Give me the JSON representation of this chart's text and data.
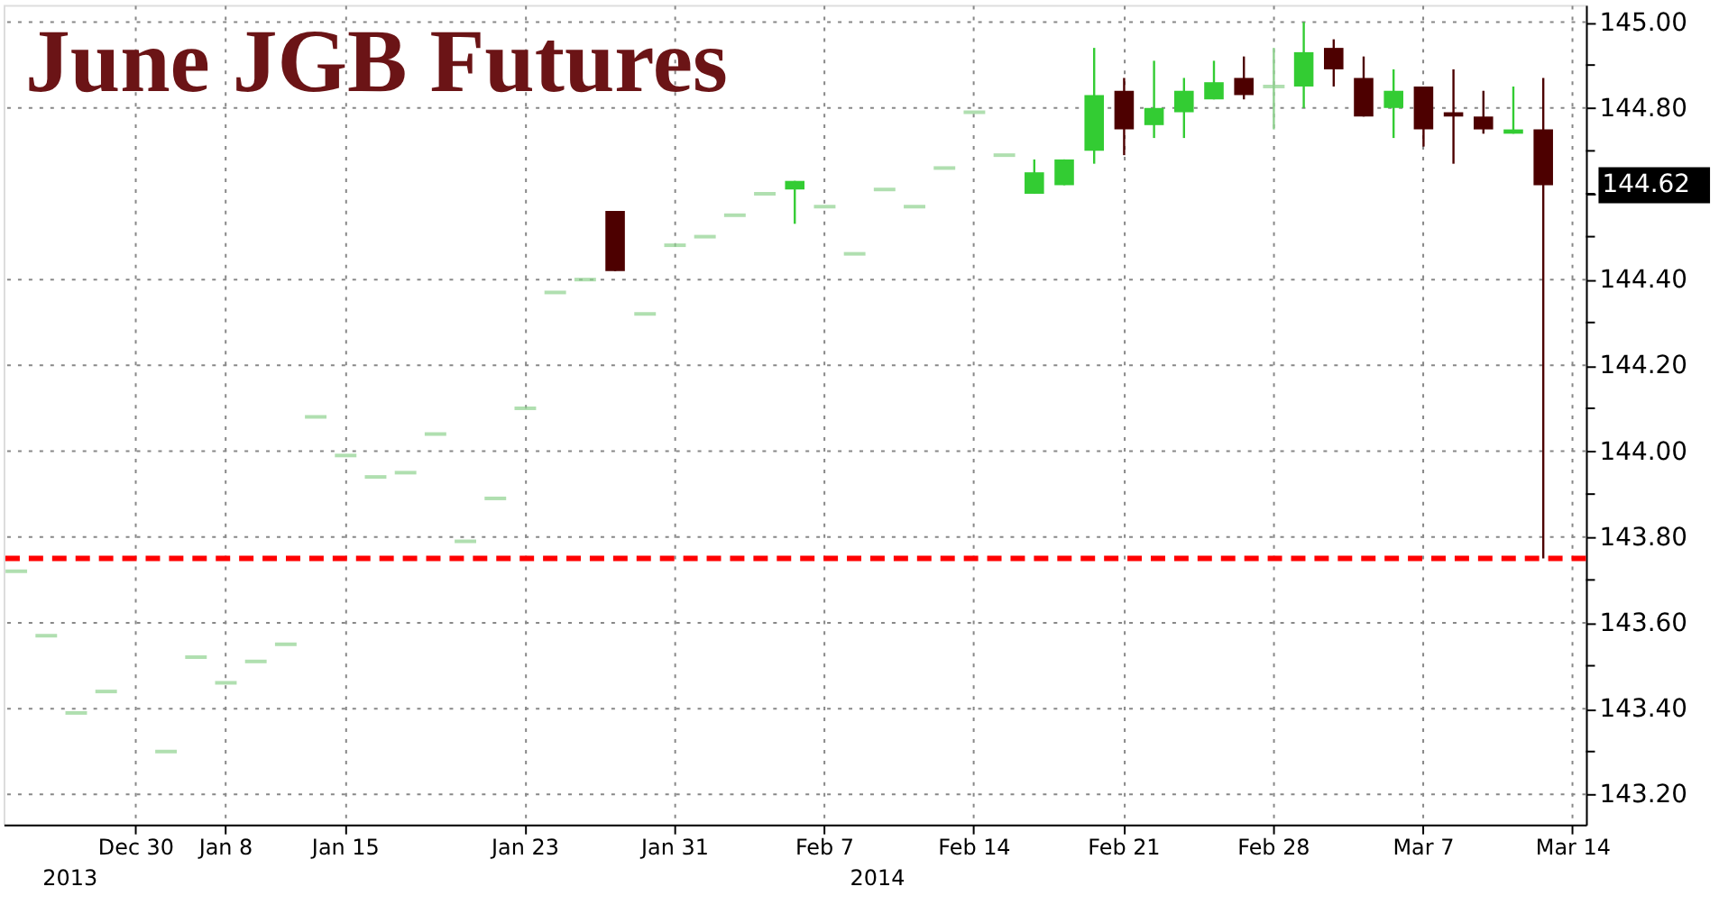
{
  "chart_data": {
    "type": "candlestick",
    "title": "June JGB Futures",
    "categories": [
      null,
      null,
      null,
      null,
      "Dec 30",
      null,
      null,
      "Jan 8",
      null,
      null,
      null,
      "Jan 15",
      null,
      null,
      null,
      null,
      null,
      "Jan 23",
      null,
      null,
      null,
      null,
      "Jan 31",
      null,
      null,
      null,
      null,
      "Feb 7",
      null,
      null,
      null,
      null,
      "Feb 14",
      null,
      null,
      null,
      null,
      "Feb 21",
      null,
      null,
      null,
      null,
      "Feb 28",
      null,
      null,
      null,
      null,
      "Mar 7",
      null,
      null,
      null,
      null,
      "Mar 14"
    ],
    "ohlc": [
      [
        143.72,
        143.72,
        143.72,
        143.72
      ],
      [
        143.57,
        143.57,
        143.57,
        143.57
      ],
      [
        143.39,
        143.39,
        143.39,
        143.39
      ],
      [
        143.44,
        143.44,
        143.44,
        143.44
      ],
      null,
      [
        143.3,
        143.3,
        143.3,
        143.3
      ],
      [
        143.52,
        143.52,
        143.52,
        143.52
      ],
      [
        143.46,
        143.46,
        143.46,
        143.46
      ],
      [
        143.51,
        143.51,
        143.51,
        143.51
      ],
      [
        143.55,
        143.55,
        143.55,
        143.55
      ],
      [
        144.08,
        144.08,
        144.08,
        144.08
      ],
      [
        143.99,
        143.99,
        143.99,
        143.99
      ],
      [
        143.94,
        143.94,
        143.94,
        143.94
      ],
      [
        143.95,
        143.95,
        143.95,
        143.95
      ],
      [
        144.04,
        144.04,
        144.04,
        144.04
      ],
      [
        143.79,
        143.79,
        143.79,
        143.79
      ],
      [
        143.89,
        143.89,
        143.89,
        143.89
      ],
      [
        144.1,
        144.1,
        144.1,
        144.1
      ],
      [
        144.37,
        144.37,
        144.37,
        144.37
      ],
      [
        144.4,
        144.4,
        144.4,
        144.4
      ],
      [
        144.56,
        144.56,
        144.42,
        144.42
      ],
      [
        144.32,
        144.32,
        144.32,
        144.32
      ],
      [
        144.48,
        144.48,
        144.48,
        144.48
      ],
      [
        144.5,
        144.5,
        144.5,
        144.5
      ],
      [
        144.55,
        144.55,
        144.55,
        144.55
      ],
      [
        144.6,
        144.6,
        144.6,
        144.6
      ],
      [
        144.61,
        144.63,
        144.53,
        144.63
      ],
      [
        144.57,
        144.57,
        144.57,
        144.57
      ],
      [
        144.46,
        144.46,
        144.46,
        144.46
      ],
      [
        144.61,
        144.61,
        144.61,
        144.61
      ],
      [
        144.57,
        144.57,
        144.57,
        144.57
      ],
      [
        144.66,
        144.66,
        144.66,
        144.66
      ],
      [
        144.79,
        144.79,
        144.79,
        144.79
      ],
      [
        144.69,
        144.69,
        144.69,
        144.69
      ],
      [
        144.6,
        144.68,
        144.6,
        144.65
      ],
      [
        144.62,
        144.68,
        144.62,
        144.68
      ],
      [
        144.7,
        144.94,
        144.67,
        144.83
      ],
      [
        144.84,
        144.87,
        144.69,
        144.75
      ],
      [
        144.76,
        144.91,
        144.73,
        144.8
      ],
      [
        144.79,
        144.87,
        144.73,
        144.84
      ],
      [
        144.82,
        144.91,
        144.82,
        144.86
      ],
      [
        144.87,
        144.92,
        144.82,
        144.83
      ],
      [
        144.85,
        144.94,
        144.75,
        144.85
      ],
      [
        144.85,
        145.0,
        144.8,
        144.93
      ],
      [
        144.94,
        144.96,
        144.85,
        144.89
      ],
      [
        144.87,
        144.92,
        144.78,
        144.78
      ],
      [
        144.8,
        144.89,
        144.73,
        144.84
      ],
      [
        144.85,
        144.85,
        144.71,
        144.75
      ],
      [
        144.79,
        144.89,
        144.67,
        144.78
      ],
      [
        144.78,
        144.84,
        144.74,
        144.75
      ],
      [
        144.74,
        144.85,
        144.74,
        144.75
      ],
      [
        144.75,
        144.87,
        143.75,
        144.62
      ],
      null
    ],
    "colors": [
      "#8fd18f",
      "#8fd18f",
      "#8fd18f",
      "#8fd18f",
      null,
      "#8fd18f",
      "#8fd18f",
      "#8fd18f",
      "#8fd18f",
      "#8fd18f",
      "#8fd18f",
      "#8fd18f",
      "#8fd18f",
      "#8fd18f",
      "#8fd18f",
      "#8fd18f",
      "#8fd18f",
      "#8fd18f",
      "#8fd18f",
      "#8fd18f",
      "#4d0000",
      "#8fd18f",
      "#8fd18f",
      "#8fd18f",
      "#8fd18f",
      "#8fd18f",
      "#33cc33",
      "#8fd18f",
      "#8fd18f",
      "#8fd18f",
      "#8fd18f",
      "#8fd18f",
      "#8fd18f",
      "#8fd18f",
      "#33cc33",
      "#33cc33",
      "#33cc33",
      "#4d0000",
      "#33cc33",
      "#33cc33",
      "#33cc33",
      "#4d0000",
      "#8fd18f",
      "#33cc33",
      "#4d0000",
      "#4d0000",
      "#33cc33",
      "#4d0000",
      "#4d0000",
      "#4d0000",
      "#33cc33",
      "#4d0000",
      null
    ],
    "ylim": [
      143.13,
      145.04
    ],
    "yticks": [
      {
        "value": 143.2,
        "label": "143.20"
      },
      {
        "value": 143.3,
        "label": null
      },
      {
        "value": 143.4,
        "label": "143.40"
      },
      {
        "value": 143.5,
        "label": null
      },
      {
        "value": 143.6,
        "label": "143.60"
      },
      {
        "value": 143.7,
        "label": null
      },
      {
        "value": 143.8,
        "label": "143.80"
      },
      {
        "value": 143.9,
        "label": null
      },
      {
        "value": 144.0,
        "label": "144.00"
      },
      {
        "value": 144.1,
        "label": null
      },
      {
        "value": 144.2,
        "label": "144.20"
      },
      {
        "value": 144.3,
        "label": null
      },
      {
        "value": 144.4,
        "label": "144.40"
      },
      {
        "value": 144.5,
        "label": null
      },
      {
        "value": 144.6,
        "label": null
      },
      {
        "value": 144.7,
        "label": null
      },
      {
        "value": 144.8,
        "label": "144.80"
      },
      {
        "value": 144.9,
        "label": null
      },
      {
        "value": 145.0,
        "label": "145.00"
      }
    ],
    "grid": true,
    "ref_lines": [
      {
        "axis": "y",
        "value": 143.75,
        "color": "#ff0000",
        "line_style": "dashed"
      }
    ],
    "annotations": [
      "2013",
      "2014",
      "144.62"
    ]
  }
}
